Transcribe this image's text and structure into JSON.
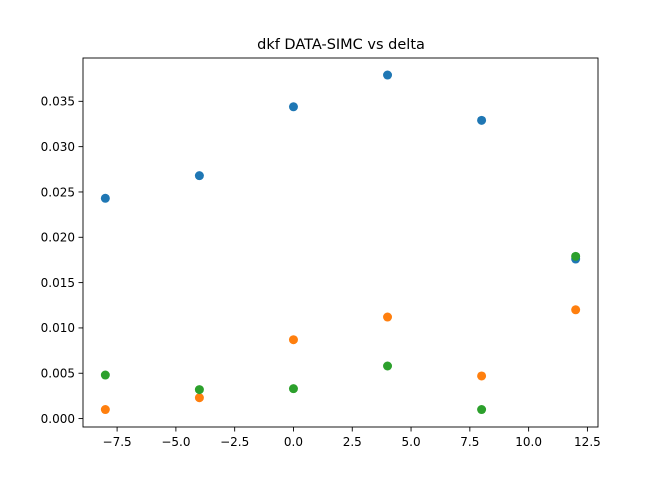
{
  "chart_data": {
    "type": "scatter",
    "title": "dkf DATA-SIMC vs delta",
    "xlabel": "",
    "ylabel": "",
    "xlim": [
      -8.95,
      12.95
    ],
    "ylim": [
      -0.00093,
      0.03978
    ],
    "xticks": [
      -7.5,
      -5.0,
      -2.5,
      0.0,
      2.5,
      5.0,
      7.5,
      10.0,
      12.5
    ],
    "xtick_labels": [
      "−7.5",
      "−5.0",
      "−2.5",
      "0.0",
      "2.5",
      "5.0",
      "7.5",
      "10.0",
      "12.5"
    ],
    "yticks": [
      0.0,
      0.005,
      0.01,
      0.015,
      0.02,
      0.025,
      0.03,
      0.035
    ],
    "ytick_labels": [
      "0.000",
      "0.005",
      "0.010",
      "0.015",
      "0.020",
      "0.025",
      "0.030",
      "0.035"
    ],
    "grid": false,
    "legend": "none",
    "series": [
      {
        "color": "#1f77b4",
        "x": [
          -8,
          -4,
          0,
          4,
          8,
          12
        ],
        "y": [
          0.0243,
          0.0268,
          0.0344,
          0.0379,
          0.0329,
          0.0176
        ]
      },
      {
        "color": "#ff7f0e",
        "x": [
          -8,
          -4,
          0,
          4,
          8,
          12
        ],
        "y": [
          0.001,
          0.0023,
          0.0087,
          0.0112,
          0.0047,
          0.012
        ]
      },
      {
        "color": "#2ca02c",
        "x": [
          -8,
          -4,
          0,
          4,
          8,
          12
        ],
        "y": [
          0.0048,
          0.0032,
          0.0033,
          0.0058,
          0.001,
          0.0179
        ]
      }
    ]
  }
}
